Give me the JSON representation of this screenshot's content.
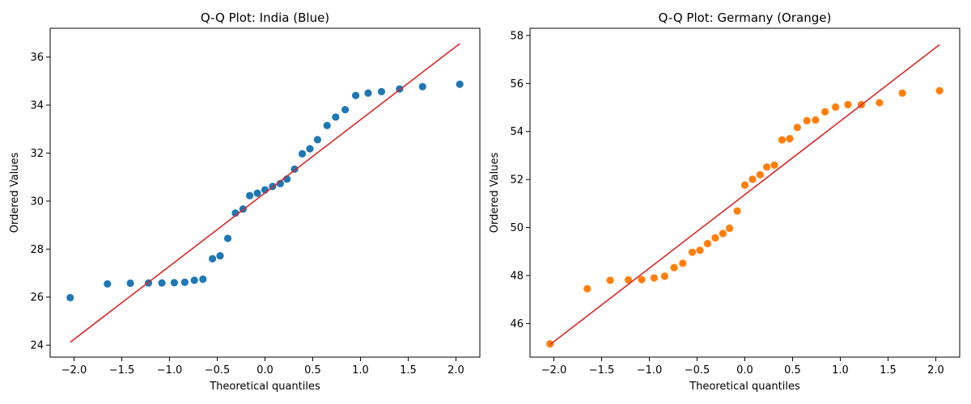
{
  "chart_data": [
    {
      "type": "scatter",
      "title": "Q-Q Plot: India (Blue)",
      "xlabel": "Theoretical quantiles",
      "ylabel": "Ordered Values",
      "xlim": [
        -2.25,
        2.25
      ],
      "ylim": [
        23.5,
        37.2
      ],
      "xticks": [
        -2.0,
        -1.5,
        -1.0,
        -0.5,
        0.0,
        0.5,
        1.0,
        1.5,
        2.0
      ],
      "xtick_labels": [
        "−2.0",
        "−1.5",
        "−1.0",
        "−0.5",
        "0.0",
        "0.5",
        "1.0",
        "1.5",
        "2.0"
      ],
      "yticks": [
        24,
        26,
        28,
        30,
        32,
        34,
        36
      ],
      "ytick_labels": [
        "24",
        "26",
        "28",
        "30",
        "32",
        "34",
        "36"
      ],
      "grid": false,
      "point_color": "#1f77b4",
      "line_color": "#d62728",
      "fit_line": [
        [
          -2.04,
          24.12
        ],
        [
          2.04,
          36.56
        ]
      ],
      "series": [
        {
          "x": [
            -2.04,
            -1.65,
            -1.41,
            -1.22,
            -1.08,
            -0.95,
            -0.84,
            -0.74,
            -0.65,
            -0.55,
            -0.47,
            -0.39,
            -0.31,
            -0.23,
            -0.16,
            -0.08,
            0.0,
            0.08,
            0.16,
            0.23,
            0.31,
            0.39,
            0.47,
            0.55,
            0.65,
            0.74,
            0.84,
            0.95,
            1.08,
            1.22,
            1.41,
            1.65,
            2.04
          ],
          "y": [
            25.98,
            26.55,
            26.58,
            26.59,
            26.59,
            26.6,
            26.62,
            26.7,
            26.75,
            27.6,
            27.72,
            28.45,
            29.5,
            29.67,
            30.23,
            30.33,
            30.47,
            30.61,
            30.73,
            30.92,
            31.33,
            31.97,
            32.18,
            32.56,
            33.15,
            33.5,
            33.81,
            34.4,
            34.5,
            34.56,
            34.67,
            34.77,
            34.87
          ]
        }
      ]
    },
    {
      "type": "scatter",
      "title": "Q-Q Plot: Germany (Orange)",
      "xlabel": "Theoretical quantiles",
      "ylabel": "Ordered Values",
      "xlim": [
        -2.25,
        2.25
      ],
      "ylim": [
        44.6,
        58.3
      ],
      "xticks": [
        -2.0,
        -1.5,
        -1.0,
        -0.5,
        0.0,
        0.5,
        1.0,
        1.5,
        2.0
      ],
      "xtick_labels": [
        "−2.0",
        "−1.5",
        "−1.0",
        "−0.5",
        "0.0",
        "0.5",
        "1.0",
        "1.5",
        "2.0"
      ],
      "yticks": [
        46,
        48,
        50,
        52,
        54,
        56,
        58
      ],
      "ytick_labels": [
        "46",
        "48",
        "50",
        "52",
        "54",
        "56",
        "58"
      ],
      "grid": false,
      "point_color": "#ff7f0e",
      "line_color": "#d62728",
      "fit_line": [
        [
          -2.04,
          45.12
        ],
        [
          2.04,
          57.62
        ]
      ],
      "series": [
        {
          "x": [
            -2.04,
            -1.65,
            -1.41,
            -1.22,
            -1.08,
            -0.95,
            -0.84,
            -0.74,
            -0.65,
            -0.55,
            -0.47,
            -0.39,
            -0.31,
            -0.23,
            -0.16,
            -0.08,
            0.0,
            0.08,
            0.16,
            0.23,
            0.31,
            0.39,
            0.47,
            0.55,
            0.65,
            0.74,
            0.84,
            0.95,
            1.08,
            1.22,
            1.41,
            1.65,
            2.04
          ],
          "y": [
            45.15,
            47.45,
            47.8,
            47.82,
            47.83,
            47.9,
            47.97,
            48.33,
            48.51,
            48.97,
            49.05,
            49.33,
            49.57,
            49.75,
            49.97,
            50.69,
            51.77,
            52.01,
            52.2,
            52.52,
            52.6,
            53.65,
            53.7,
            54.17,
            54.45,
            54.48,
            54.82,
            55.02,
            55.12,
            55.12,
            55.2,
            55.6,
            55.7
          ]
        }
      ]
    }
  ]
}
